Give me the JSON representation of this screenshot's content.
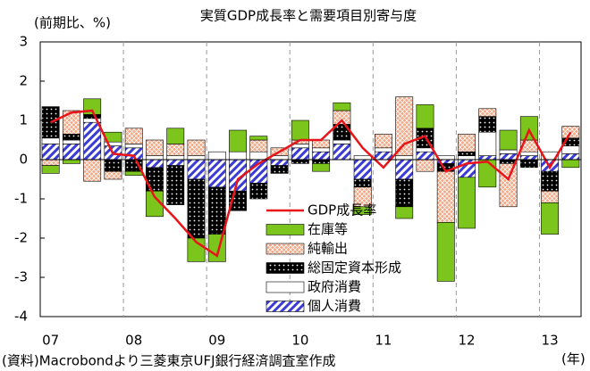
{
  "chart_data": {
    "type": "bar",
    "stacked": true,
    "title": "実質GDP成長率と需要項目別寄与度",
    "y_label": "(前期比、%)",
    "x_label": "(年)",
    "source": "(資料)Macrobondより三菱東京UFJ銀行経済調査室作成",
    "categories": [
      "07",
      null,
      null,
      null,
      "08",
      null,
      null,
      null,
      "09",
      null,
      null,
      null,
      "10",
      null,
      null,
      null,
      "11",
      null,
      null,
      null,
      "12",
      null,
      null,
      null,
      "13",
      null
    ],
    "series": [
      {
        "name": "個人消費",
        "color": "#3b3bd6",
        "pattern": "hatch",
        "values": [
          0.4,
          0.4,
          0.95,
          0.35,
          0.3,
          -0.2,
          -0.15,
          -0.5,
          -0.7,
          -0.8,
          -0.6,
          -0.15,
          0.3,
          0.2,
          0.4,
          -0.5,
          0.2,
          -0.5,
          0.2,
          -0.1,
          -0.45,
          0.1,
          0.15,
          0.1,
          -0.3,
          0.15
        ]
      },
      {
        "name": "政府消費",
        "color": "#ffffff",
        "pattern": "solid",
        "values": [
          0.15,
          0.1,
          0.1,
          0.1,
          0.1,
          0.1,
          0.1,
          0.1,
          0.2,
          0.2,
          0.2,
          0.1,
          0.1,
          0.1,
          0.1,
          0.1,
          0.1,
          0.1,
          0.1,
          0.1,
          0.1,
          0.6,
          0.1,
          0.1,
          0.2,
          0.2
        ]
      },
      {
        "name": "総固定資本形成",
        "color": "#000000",
        "pattern": "dots",
        "values": [
          0.8,
          0.15,
          0.1,
          -0.3,
          -0.3,
          -0.6,
          -1.0,
          -1.5,
          -1.2,
          -0.5,
          -0.4,
          -0.2,
          -0.1,
          -0.1,
          0.4,
          -0.2,
          0.0,
          -0.7,
          0.5,
          -0.2,
          0.1,
          0.4,
          -0.1,
          -0.2,
          -0.5,
          0.2
        ]
      },
      {
        "name": "純輸出",
        "color": "#f4a582",
        "pattern": "cross",
        "values": [
          -0.15,
          0.6,
          -0.55,
          -0.2,
          0.4,
          0.4,
          0.3,
          0.4,
          0.0,
          0.0,
          0.3,
          0.2,
          0.1,
          0.2,
          0.35,
          -0.5,
          0.35,
          1.5,
          -0.3,
          -1.3,
          0.45,
          0.2,
          -1.1,
          0.3,
          -0.3,
          0.3
        ]
      },
      {
        "name": "在庫等",
        "color": "#7cc51c",
        "pattern": "solid",
        "values": [
          -0.2,
          -0.1,
          0.4,
          0.25,
          -0.1,
          -0.65,
          0.4,
          -0.6,
          -0.7,
          0.55,
          0.1,
          0.0,
          0.5,
          -0.2,
          0.2,
          -0.2,
          0.0,
          -0.3,
          0.6,
          -1.5,
          -1.3,
          -0.7,
          0.5,
          0.6,
          -0.8,
          -0.2
        ]
      },
      {
        "name": "GDP成長率",
        "color": "#e8141a",
        "type": "line",
        "values": [
          0.95,
          1.2,
          1.25,
          0.15,
          0.1,
          -0.95,
          -1.5,
          -2.1,
          -2.45,
          -0.5,
          -0.1,
          0.2,
          0.5,
          0.5,
          1.0,
          0.3,
          -0.2,
          0.4,
          0.6,
          -0.3,
          -0.1,
          -0.05,
          -0.5,
          0.75,
          -0.2,
          0.7
        ]
      }
    ],
    "ylim": [
      -4,
      3
    ],
    "yticks": [
      -4,
      -3,
      -2,
      -1,
      0,
      1,
      2,
      3
    ]
  }
}
